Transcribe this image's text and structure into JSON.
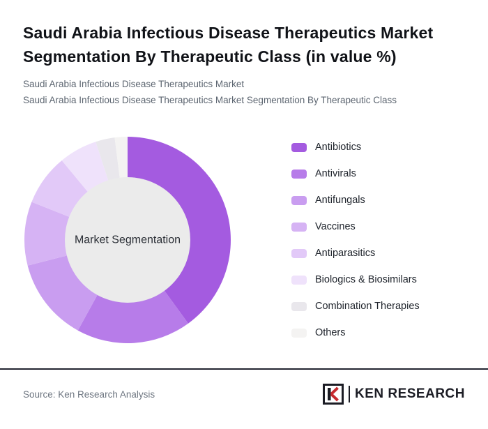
{
  "header": {
    "title": "Saudi Arabia Infectious Disease Therapeutics Market Segmentation By Therapeutic Class (in value %)",
    "subtitle1": "Saudi Arabia Infectious Disease Therapeutics Market",
    "subtitle2": "Saudi Arabia Infectious Disease Therapeutics Market Segmentation By Therapeutic Class"
  },
  "chart_data": {
    "type": "pie",
    "donut": true,
    "title": "Saudi Arabia Infectious Disease Therapeutics Market Segmentation By Therapeutic Class (in value %)",
    "center_label": "Market Segmentation",
    "unit": "value %",
    "legend_position": "right",
    "categories": [
      "Antibiotics",
      "Antivirals",
      "Antifungals",
      "Vaccines",
      "Antiparasitics",
      "Biologics & Biosimilars",
      "Combination Therapies",
      "Others"
    ],
    "values": [
      40,
      18,
      13,
      10,
      8,
      6,
      3,
      2
    ],
    "colors": [
      "#a45be0",
      "#b77ce9",
      "#c99df0",
      "#d6b3f4",
      "#e2c9f8",
      "#efe2fb",
      "#e9e7ec",
      "#f4f3f2"
    ],
    "center_color": "#ebebeb",
    "center_text_color": "#2b2f36"
  },
  "footer": {
    "source": "Source: Ken Research Analysis",
    "logo_text": "KEN RESEARCH"
  }
}
